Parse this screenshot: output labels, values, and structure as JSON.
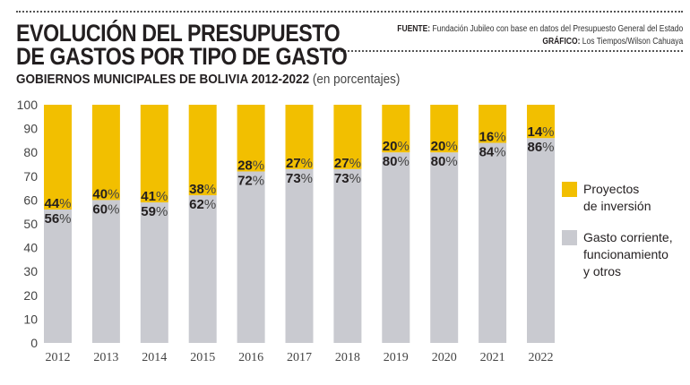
{
  "header": {
    "title_line1": "EVOLUCIÓN DEL PRESUPUESTO",
    "title_line2": "DE GASTOS POR TIPO DE GASTO",
    "source_label": "FUENTE:",
    "source_text": "Fundación Jubileo con base en datos del Presupuesto General del Estado",
    "graphic_label": "GRÁFICO:",
    "graphic_text": "Los Tiempos/Wilson Cahuaya",
    "subtitle_bold": "GOBIERNOS MUNICIPALES DE BOLIVIA 2012-2022",
    "subtitle_normal": "(en porcentajes)"
  },
  "colors": {
    "inversion": "#f2bf00",
    "corriente": "#c9cad0"
  },
  "chart_data": {
    "type": "bar",
    "stacked": true,
    "title": "EVOLUCIÓN DEL PRESUPUESTO DE GASTOS POR TIPO DE GASTO",
    "subtitle": "GOBIERNOS MUNICIPALES DE BOLIVIA 2012-2022 (en porcentajes)",
    "xlabel": "",
    "ylabel": "",
    "ylim": [
      0,
      100
    ],
    "yticks": [
      0,
      10,
      20,
      30,
      40,
      50,
      60,
      70,
      80,
      90,
      100
    ],
    "categories": [
      "2012",
      "2013",
      "2014",
      "2015",
      "2016",
      "2017",
      "2018",
      "2019",
      "2020",
      "2021",
      "2022"
    ],
    "series": [
      {
        "name": "Gasto corriente, funcionamiento y otros",
        "legend_lines": [
          "Gasto corriente,",
          "funcionamiento",
          "y otros"
        ],
        "values": [
          56,
          60,
          59,
          62,
          72,
          73,
          73,
          80,
          80,
          84,
          86
        ]
      },
      {
        "name": "Proyectos de inversión",
        "legend_lines": [
          "Proyectos",
          "de inversión"
        ],
        "values": [
          44,
          40,
          41,
          38,
          28,
          27,
          27,
          20,
          20,
          16,
          14
        ]
      }
    ],
    "legend_position": "right",
    "grid": false
  }
}
